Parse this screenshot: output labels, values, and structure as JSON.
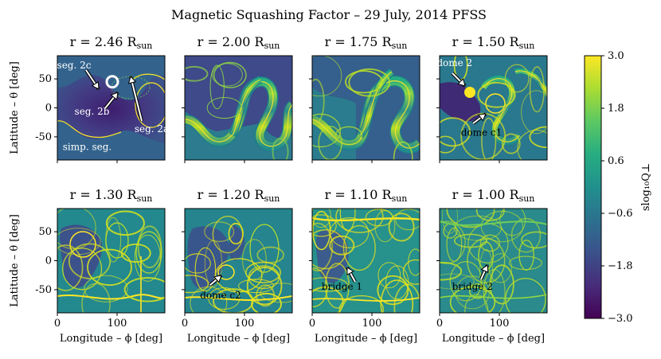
{
  "chart_data": {
    "type": "heatmap",
    "title": "Magnetic Squashing Factor – 29 July, 2014 PFSS",
    "xlabel": "Longitude – ϕ [deg]",
    "ylabel": "Latitude – θ [deg]",
    "xlim": [
      0,
      180
    ],
    "ylim": [
      -90,
      90
    ],
    "xticks": [
      0,
      100
    ],
    "yticks": [
      50,
      0,
      -50
    ],
    "colorbar": {
      "label": "slog₁₀Q⊥",
      "min": -3.0,
      "max": 3.0,
      "ticks": [
        "3.0",
        "1.8",
        "0.6",
        "−0.6",
        "−1.8",
        "−3.0"
      ],
      "tick_values": [
        3.0,
        1.8,
        0.6,
        -0.6,
        -1.8,
        -3.0
      ],
      "colormap": [
        "#440154",
        "#472c7a",
        "#3b518b",
        "#2c718e",
        "#21908d",
        "#27ad81",
        "#5cc863",
        "#aadc32",
        "#fde725"
      ]
    },
    "panels": [
      {
        "r": "r = 2.46 R",
        "unit_sub": "sun",
        "row": 0,
        "col": 0,
        "annotations": [
          {
            "text": "seg. 2c",
            "x": 28,
            "y": 68
          },
          {
            "text": "seg. 2b",
            "x": 58,
            "y": -12
          },
          {
            "text": "seg. 2a",
            "x": 158,
            "y": -42
          },
          {
            "text": "simp. seg.",
            "x": 50,
            "y": -73
          }
        ],
        "marker": {
          "type": "circle",
          "x": 92,
          "y": 45
        }
      },
      {
        "r": "r = 2.00 R",
        "unit_sub": "sun",
        "row": 0,
        "col": 1,
        "annotations": []
      },
      {
        "r": "r = 1.75 R",
        "unit_sub": "sun",
        "row": 0,
        "col": 2,
        "annotations": []
      },
      {
        "r": "r = 1.50 R",
        "unit_sub": "sun",
        "row": 0,
        "col": 3,
        "annotations": [
          {
            "text": "dome 2",
            "x": 25,
            "y": 72
          },
          {
            "text": "dome c1",
            "x": 70,
            "y": -48
          }
        ]
      },
      {
        "r": "r = 1.30 R",
        "unit_sub": "sun",
        "row": 1,
        "col": 0,
        "annotations": []
      },
      {
        "r": "r = 1.20 R",
        "unit_sub": "sun",
        "row": 1,
        "col": 1,
        "annotations": [
          {
            "text": "dome c2",
            "x": 60,
            "y": -65
          }
        ]
      },
      {
        "r": "r = 1.10 R",
        "unit_sub": "sun",
        "row": 1,
        "col": 2,
        "annotations": [
          {
            "text": "bridge 1",
            "x": 50,
            "y": -50
          }
        ]
      },
      {
        "r": "r = 1.00 R",
        "unit_sub": "sun",
        "row": 1,
        "col": 3,
        "annotations": [
          {
            "text": "bridge 2",
            "x": 55,
            "y": -50
          }
        ]
      }
    ]
  }
}
